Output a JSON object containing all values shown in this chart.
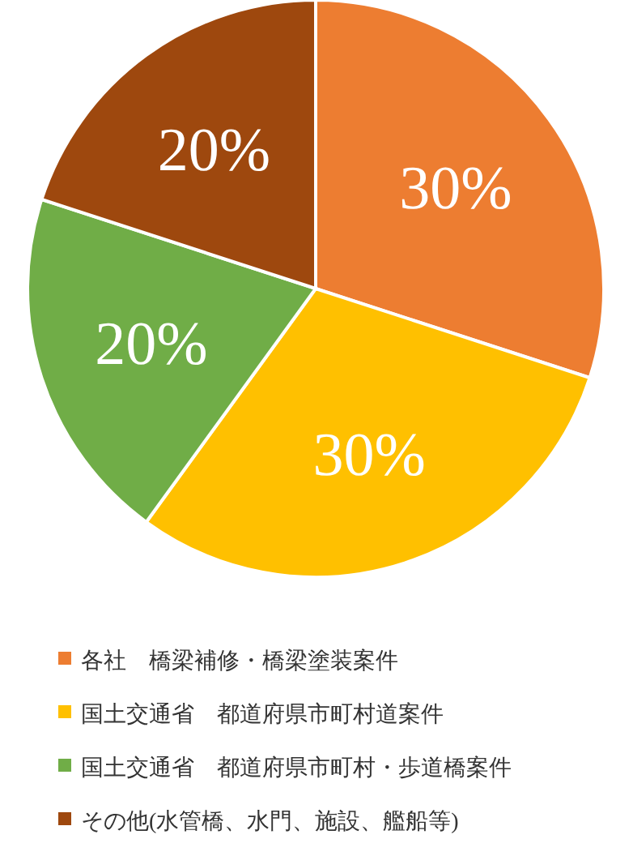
{
  "chart_data": {
    "type": "pie",
    "categories": [
      "各社　橋梁補修・橋梁塗装案件",
      "国土交通省　都道府県市町村道案件",
      "国土交通省　都道府県市町村・歩道橋案件",
      "その他(水管橋、水門、施設、艦船等)"
    ],
    "values": [
      30,
      30,
      20,
      20
    ],
    "colors": [
      "#ed7d31",
      "#ffc000",
      "#70ad47",
      "#9e480e"
    ],
    "value_labels": [
      "30%",
      "30%",
      "20%",
      "20%"
    ],
    "legend": "bottom"
  }
}
